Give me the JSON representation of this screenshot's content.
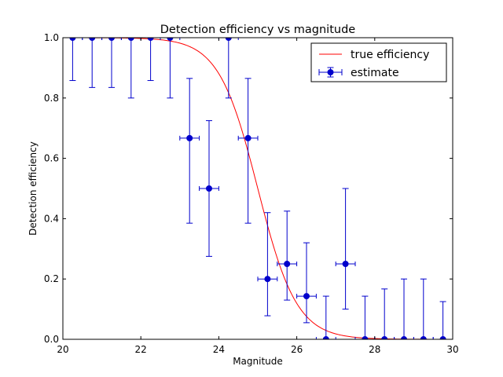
{
  "chart_data": {
    "type": "scatter",
    "title": "Detection efficiency vs magnitude",
    "xlabel": "Magnitude",
    "ylabel": "Detection efficiency",
    "xlim": [
      20,
      30
    ],
    "ylim": [
      0.0,
      1.0
    ],
    "xticks": [
      "20",
      "22",
      "24",
      "26",
      "28",
      "30"
    ],
    "yticks": [
      "0.0",
      "0.2",
      "0.4",
      "0.6",
      "0.8",
      "1.0"
    ],
    "grid": false,
    "legend_position": "top-right",
    "colors": {
      "curve": "#ff0000",
      "estimate": "#0000cc"
    },
    "curve": {
      "name": "true efficiency",
      "model": "logistic",
      "midpoint": 25.0,
      "scale": 0.5
    },
    "series": [
      {
        "name": "estimate",
        "x_err": 0.25,
        "points": [
          {
            "x": 20.25,
            "y": 1.0,
            "y_low": 0.858,
            "y_high": 1.0
          },
          {
            "x": 20.75,
            "y": 1.0,
            "y_low": 0.835,
            "y_high": 1.0
          },
          {
            "x": 21.25,
            "y": 1.0,
            "y_low": 0.835,
            "y_high": 1.0
          },
          {
            "x": 21.75,
            "y": 1.0,
            "y_low": 0.8,
            "y_high": 1.0
          },
          {
            "x": 22.25,
            "y": 1.0,
            "y_low": 0.858,
            "y_high": 1.0
          },
          {
            "x": 22.75,
            "y": 1.0,
            "y_low": 0.8,
            "y_high": 1.0
          },
          {
            "x": 23.25,
            "y": 0.667,
            "y_low": 0.385,
            "y_high": 0.865
          },
          {
            "x": 23.75,
            "y": 0.5,
            "y_low": 0.275,
            "y_high": 0.725
          },
          {
            "x": 24.25,
            "y": 1.0,
            "y_low": 0.8,
            "y_high": 1.0
          },
          {
            "x": 24.75,
            "y": 0.667,
            "y_low": 0.385,
            "y_high": 0.865
          },
          {
            "x": 25.25,
            "y": 0.2,
            "y_low": 0.078,
            "y_high": 0.42
          },
          {
            "x": 25.75,
            "y": 0.25,
            "y_low": 0.13,
            "y_high": 0.425
          },
          {
            "x": 26.25,
            "y": 0.143,
            "y_low": 0.055,
            "y_high": 0.32
          },
          {
            "x": 26.75,
            "y": 0.0,
            "y_low": 0.0,
            "y_high": 0.143
          },
          {
            "x": 27.25,
            "y": 0.25,
            "y_low": 0.1,
            "y_high": 0.5
          },
          {
            "x": 27.75,
            "y": 0.0,
            "y_low": 0.0,
            "y_high": 0.143
          },
          {
            "x": 28.25,
            "y": 0.0,
            "y_low": 0.0,
            "y_high": 0.167
          },
          {
            "x": 28.75,
            "y": 0.0,
            "y_low": 0.0,
            "y_high": 0.2
          },
          {
            "x": 29.25,
            "y": 0.0,
            "y_low": 0.0,
            "y_high": 0.2
          },
          {
            "x": 29.75,
            "y": 0.0,
            "y_low": 0.0,
            "y_high": 0.125
          }
        ]
      }
    ]
  }
}
